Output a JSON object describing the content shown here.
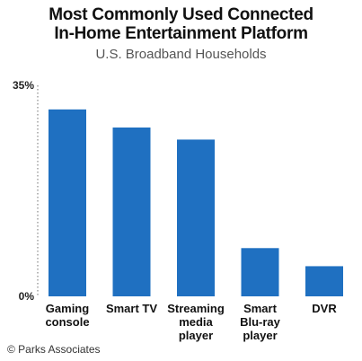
{
  "chart_data": {
    "type": "bar",
    "title_lines": [
      "Most Commonly Used Connected",
      "In-Home Entertainment Platform"
    ],
    "subtitle": "U.S. Broadband Households",
    "categories": [
      [
        "Gaming",
        "console"
      ],
      [
        "Smart TV"
      ],
      [
        "Streaming",
        "media",
        "player"
      ],
      [
        "Smart",
        "Blu-ray",
        "player"
      ],
      [
        "DVR"
      ]
    ],
    "values": [
      31,
      28,
      26,
      8,
      5
    ],
    "ylim": [
      0,
      35
    ],
    "ytick_labels": [
      "35%",
      "0%"
    ],
    "grid": false,
    "bar_color": "#1f70c1"
  },
  "credit": "© Parks Associates"
}
